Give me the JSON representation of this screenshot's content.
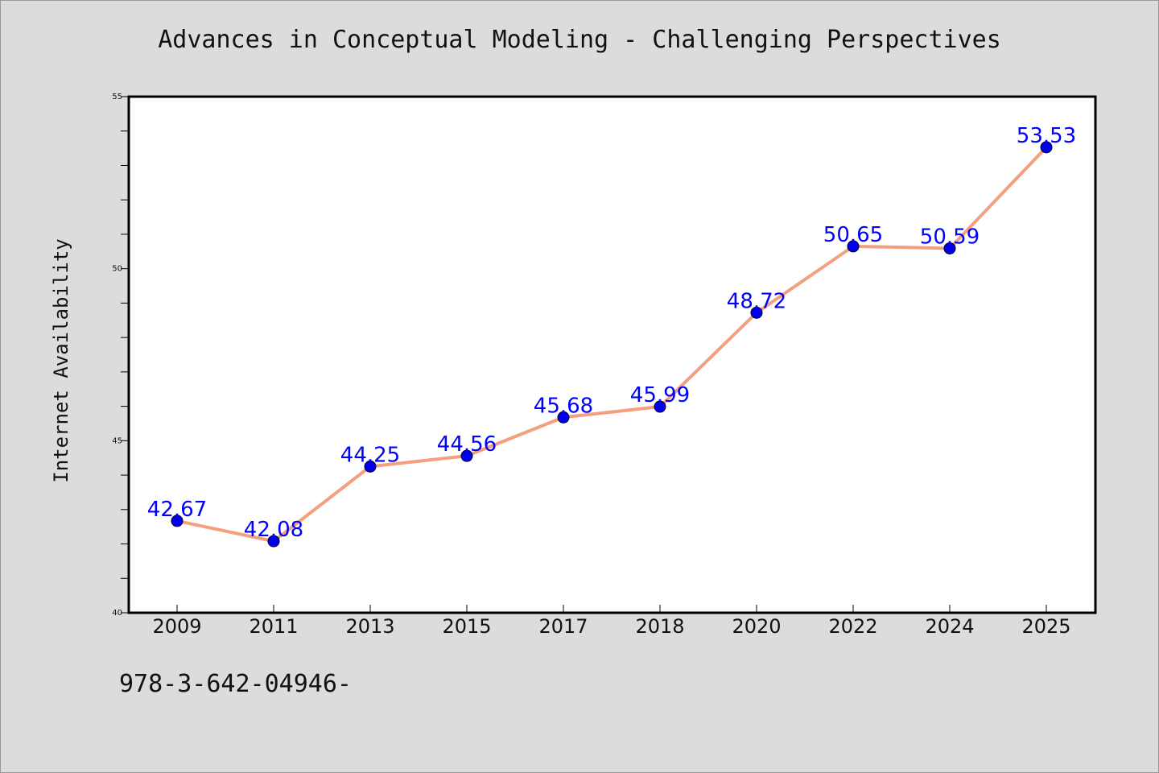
{
  "chart_data": {
    "type": "line",
    "title": "Advances in Conceptual Modeling - Challenging Perspectives",
    "xlabel": "",
    "ylabel": "Internet Availability",
    "categories": [
      "2009",
      "2011",
      "2013",
      "2015",
      "2017",
      "2018",
      "2020",
      "2022",
      "2024",
      "2025"
    ],
    "series": [
      {
        "values": [
          42.67,
          42.08,
          44.25,
          44.56,
          45.68,
          45.99,
          48.72,
          50.65,
          50.59,
          53.53
        ],
        "line_color": "#f4a07e",
        "marker_color": "#0000ee"
      }
    ],
    "data_labels": [
      "42.67",
      "42.08",
      "44.25",
      "44.56",
      "45.68",
      "45.99",
      "48.72",
      "50.65",
      "50.59",
      "53.53"
    ],
    "data_label_color": "#0000ff",
    "ylim": [
      40,
      55
    ],
    "yticks": [
      40,
      45,
      50,
      55
    ],
    "grid": false,
    "legend": "none"
  },
  "footnote": "978-3-642-04946-"
}
